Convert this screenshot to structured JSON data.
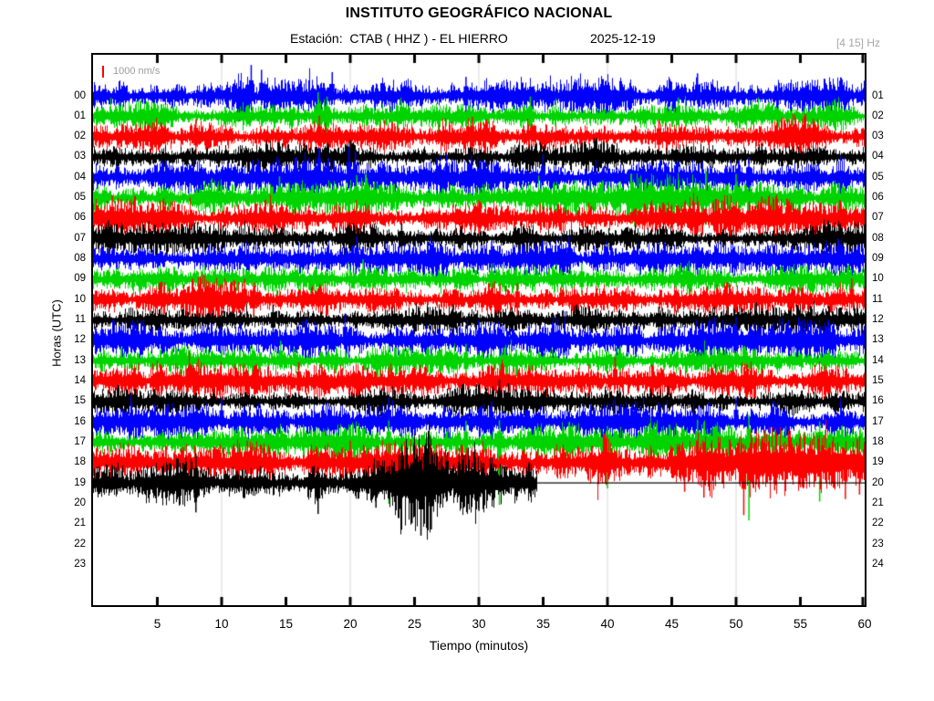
{
  "header": {
    "title": "INSTITUTO GEOGRÁFICO NACIONAL",
    "station_label": "Estación:  CTAB ( HHZ ) - EL HIERRO",
    "date": "2025-12-19",
    "filter_band": "[4 15] Hz"
  },
  "chart_data": {
    "type": "line",
    "subtype": "helicorder-seismogram",
    "title": "INSTITUTO GEOGRÁFICO NACIONAL",
    "subtitle": "Estación: CTAB ( HHZ ) - EL HIERRO  2025-12-19",
    "xlabel": "Tiempo (minutos)",
    "ylabel": "Horas (UTC)",
    "x_range": [
      0,
      60
    ],
    "x_ticks": [
      5,
      10,
      15,
      20,
      25,
      30,
      35,
      40,
      45,
      50,
      55,
      60
    ],
    "gridlines_minutes": [
      10,
      20,
      30,
      40,
      50
    ],
    "grid_color": "#d9d9d9",
    "grid_on": true,
    "legend": "none",
    "scale_marker": {
      "label": "1000 nm/s",
      "color": "#ff0000"
    },
    "trace_colors_cycle": [
      "#0000ff",
      "#00d400",
      "#ff0000",
      "#000000"
    ],
    "rows": [
      {
        "hour": "00",
        "end_hour": "01",
        "color": "#0000ff",
        "base_amp": 13,
        "coverage_min": 60,
        "envelope": [
          1.1,
          1.0,
          0.92,
          1.0,
          1.25,
          1.1,
          1.3,
          1.0,
          0.92,
          1.0,
          1.1,
          0.92,
          1.0,
          1.1,
          0.92,
          1.2,
          1.0,
          1.1,
          1.0,
          0.95
        ],
        "spikes": [
          [
            12.3,
            2.6,
            1
          ],
          [
            13.1,
            2.2,
            1
          ],
          [
            18.6,
            2.0,
            1
          ],
          [
            29,
            1.6,
            0
          ],
          [
            47,
            1.9,
            1
          ]
        ]
      },
      {
        "hour": "01",
        "end_hour": "02",
        "color": "#00d400",
        "base_amp": 12,
        "coverage_min": 60,
        "envelope": [
          0.95,
          1.0,
          1.1,
          0.92,
          1.0,
          1.3,
          1.15,
          0.92,
          1.0,
          0.95,
          1.1,
          1.15,
          0.92,
          1.0,
          1.2,
          1.0,
          0.95,
          1.0,
          1.1,
          0.95
        ],
        "spikes": [
          [
            17.5,
            2.2,
            1
          ],
          [
            18.2,
            1.8,
            0
          ],
          [
            34,
            1.8,
            0
          ],
          [
            45.5,
            1.7,
            1
          ]
        ]
      },
      {
        "hour": "02",
        "end_hour": "03",
        "color": "#ff0000",
        "base_amp": 12,
        "coverage_min": 60,
        "envelope": [
          1.0,
          0.95,
          1.15,
          1.0,
          0.92,
          1.25,
          1.0,
          0.95,
          1.1,
          1.3,
          1.0,
          0.92,
          1.0,
          1.1,
          0.95,
          1.0,
          1.15,
          0.95,
          1.25,
          1.0
        ],
        "spikes": [
          [
            8,
            1.6,
            0
          ],
          [
            17.6,
            1.9,
            1
          ],
          [
            29.5,
            1.8,
            0
          ],
          [
            44,
            1.5,
            0
          ],
          [
            56,
            1.6,
            1
          ]
        ]
      },
      {
        "hour": "03",
        "end_hour": "04",
        "color": "#000000",
        "base_amp": 10.5,
        "coverage_min": 60,
        "envelope": [
          0.95,
          1.0,
          0.88,
          0.95,
          1.0,
          0.95,
          1.05,
          0.95,
          0.88,
          1.0,
          0.95,
          1.0,
          1.15,
          1.25,
          1.1,
          0.95,
          1.0,
          0.95,
          0.88,
          0.95
        ],
        "spikes": [
          [
            20,
            1.8,
            1
          ],
          [
            40,
            1.4,
            0
          ],
          [
            52,
            1.4,
            0
          ]
        ]
      },
      {
        "hour": "04",
        "end_hour": "05",
        "color": "#0000ff",
        "base_amp": 14,
        "coverage_min": 60,
        "envelope": [
          1.0,
          1.1,
          0.95,
          1.15,
          1.0,
          0.95,
          1.35,
          1.1,
          0.95,
          1.15,
          1.0,
          1.25,
          1.0,
          0.95,
          1.1,
          1.0,
          0.95,
          1.15,
          1.0,
          1.1
        ],
        "spikes": [
          [
            19.9,
            2.4,
            1
          ],
          [
            20.4,
            2.0,
            1
          ],
          [
            27.5,
            1.8,
            1
          ],
          [
            35,
            1.8,
            1
          ],
          [
            51,
            1.6,
            0
          ]
        ]
      },
      {
        "hour": "05",
        "end_hour": "06",
        "color": "#00d400",
        "base_amp": 13,
        "coverage_min": 60,
        "envelope": [
          1.0,
          0.9,
          1.05,
          1.0,
          1.45,
          1.4,
          1.1,
          1.4,
          0.9,
          1.0,
          0.9,
          1.05,
          1.0,
          1.35,
          1.45,
          1.4,
          1.45,
          1.2,
          1.0,
          0.9
        ],
        "spikes": [
          [
            14.5,
            1.8,
            1
          ],
          [
            20.5,
            1.9,
            1
          ],
          [
            43,
            1.6,
            0
          ],
          [
            50,
            2.0,
            1
          ]
        ]
      },
      {
        "hour": "06",
        "end_hour": "07",
        "color": "#ff0000",
        "base_amp": 13,
        "coverage_min": 60,
        "envelope": [
          1.35,
          1.1,
          0.9,
          1.0,
          1.05,
          0.9,
          1.0,
          1.15,
          0.9,
          1.0,
          1.05,
          0.9,
          1.0,
          0.9,
          1.05,
          1.0,
          1.45,
          1.55,
          1.4,
          1.1
        ],
        "spikes": [
          [
            1.5,
            1.9,
            1
          ],
          [
            2.2,
            1.6,
            0
          ],
          [
            30,
            1.5,
            0
          ],
          [
            52,
            1.8,
            1
          ],
          [
            54,
            1.6,
            0
          ]
        ]
      },
      {
        "hour": "07",
        "end_hour": "08",
        "color": "#000000",
        "base_amp": 11,
        "coverage_min": 60,
        "envelope": [
          1.7,
          1.5,
          1.15,
          0.95,
          1.0,
          0.9,
          0.85,
          1.0,
          0.9,
          1.05,
          0.9,
          1.0,
          0.9,
          0.85,
          1.0,
          0.9,
          1.0,
          1.05,
          1.25,
          1.35
        ],
        "spikes": [
          [
            1.2,
            1.8,
            0
          ],
          [
            24,
            1.5,
            0
          ],
          [
            58,
            1.5,
            0
          ]
        ]
      },
      {
        "hour": "08",
        "end_hour": "09",
        "color": "#0000ff",
        "base_amp": 13,
        "coverage_min": 60,
        "envelope": [
          1.0,
          1.1,
          0.95,
          1.0,
          1.15,
          0.95,
          1.25,
          1.0,
          0.95,
          1.1,
          1.0,
          0.95,
          1.3,
          1.0,
          1.1,
          0.95,
          1.0,
          1.15,
          0.95,
          1.0
        ],
        "spikes": [
          [
            20.5,
            1.9,
            1
          ],
          [
            31,
            1.5,
            0
          ],
          [
            37,
            1.9,
            1
          ],
          [
            47,
            1.5,
            0
          ]
        ]
      },
      {
        "hour": "09",
        "end_hour": "10",
        "color": "#00d400",
        "base_amp": 11.5,
        "coverage_min": 60,
        "envelope": [
          0.95,
          1.0,
          0.95,
          1.05,
          0.95,
          1.0,
          1.15,
          1.0,
          0.95,
          1.0,
          0.95,
          1.05,
          1.25,
          1.15,
          0.95,
          1.0,
          0.95,
          1.0,
          1.05,
          0.95
        ],
        "spikes": [
          [
            21,
            1.9,
            1
          ],
          [
            31,
            1.5,
            0
          ],
          [
            38,
            1.5,
            0
          ]
        ]
      },
      {
        "hour": "10",
        "end_hour": "11",
        "color": "#ff0000",
        "base_amp": 12,
        "coverage_min": 60,
        "envelope": [
          1.0,
          0.9,
          1.05,
          1.55,
          1.25,
          0.9,
          1.0,
          0.9,
          1.05,
          0.9,
          1.0,
          1.1,
          0.9,
          1.0,
          0.9,
          1.05,
          0.9,
          1.0,
          0.9,
          1.25
        ],
        "spikes": [
          [
            11.8,
            1.9,
            1
          ],
          [
            12.5,
            1.6,
            0
          ],
          [
            33,
            1.5,
            0
          ],
          [
            59,
            1.9,
            1
          ]
        ]
      },
      {
        "hour": "11",
        "end_hour": "12",
        "color": "#000000",
        "base_amp": 10.5,
        "coverage_min": 60,
        "envelope": [
          0.95,
          1.0,
          0.95,
          0.88,
          1.2,
          1.0,
          0.95,
          1.0,
          0.95,
          1.3,
          1.15,
          0.95,
          1.0,
          0.95,
          0.88,
          1.0,
          0.95,
          1.0,
          1.05,
          0.95
        ],
        "spikes": [
          [
            14,
            1.6,
            0
          ],
          [
            28,
            1.6,
            0
          ],
          [
            44,
            1.4,
            0
          ]
        ]
      },
      {
        "hour": "12",
        "end_hour": "13",
        "color": "#0000ff",
        "base_amp": 14,
        "coverage_min": 60,
        "envelope": [
          1.1,
          1.0,
          0.95,
          1.15,
          1.0,
          1.05,
          1.3,
          0.95,
          1.0,
          1.1,
          0.95,
          1.0,
          1.15,
          0.95,
          1.05,
          1.0,
          1.25,
          0.95,
          1.0,
          1.05
        ],
        "spikes": [
          [
            19.6,
            2.1,
            1
          ],
          [
            30,
            1.6,
            0
          ],
          [
            50,
            1.8,
            1
          ],
          [
            55,
            1.5,
            0
          ]
        ]
      },
      {
        "hour": "13",
        "end_hour": "14",
        "color": "#00d400",
        "base_amp": 11.5,
        "coverage_min": 60,
        "envelope": [
          0.95,
          1.0,
          1.05,
          0.95,
          1.25,
          1.0,
          0.95,
          1.0,
          0.95,
          1.15,
          0.95,
          1.0,
          0.95,
          1.05,
          0.95,
          1.0,
          0.95,
          1.0,
          1.05,
          0.95
        ],
        "spikes": [
          [
            14.6,
            1.9,
            1
          ],
          [
            29,
            1.6,
            0
          ],
          [
            41,
            1.4,
            0
          ]
        ]
      },
      {
        "hour": "14",
        "end_hour": "15",
        "color": "#ff0000",
        "base_amp": 13,
        "coverage_min": 60,
        "envelope": [
          1.35,
          1.3,
          1.35,
          1.25,
          1.3,
          1.35,
          1.2,
          1.1,
          1.0,
          0.95,
          1.0,
          0.95,
          1.0,
          1.15,
          0.95,
          1.0,
          0.95,
          1.0,
          0.95,
          1.0
        ],
        "spikes": [
          [
            5,
            1.5,
            0
          ],
          [
            16,
            1.6,
            0
          ],
          [
            40.6,
            2.0,
            1
          ]
        ]
      },
      {
        "hour": "15",
        "end_hour": "16",
        "color": "#000000",
        "base_amp": 10.5,
        "coverage_min": 60,
        "envelope": [
          0.95,
          1.0,
          0.95,
          1.0,
          0.95,
          1.05,
          0.95,
          1.0,
          1.05,
          0.95,
          1.35,
          0.95,
          1.0,
          0.95,
          1.0,
          0.95,
          1.0,
          0.95,
          1.0,
          0.95
        ],
        "spikes": [
          [
            24,
            1.5,
            0
          ],
          [
            31.6,
            2.3,
            1
          ],
          [
            32.3,
            1.9,
            0
          ]
        ]
      },
      {
        "hour": "16",
        "end_hour": "17",
        "color": "#0000ff",
        "base_amp": 14,
        "coverage_min": 60,
        "envelope": [
          1.05,
          1.0,
          1.15,
          1.25,
          1.0,
          0.95,
          1.05,
          1.3,
          0.95,
          1.0,
          1.2,
          0.95,
          1.0,
          1.05,
          0.95,
          1.15,
          1.3,
          1.0,
          1.05,
          1.0
        ],
        "spikes": [
          [
            10,
            1.8,
            1
          ],
          [
            23,
            1.9,
            1
          ],
          [
            31,
            1.6,
            0
          ],
          [
            44,
            1.5,
            0
          ],
          [
            50,
            1.9,
            1
          ]
        ]
      },
      {
        "hour": "17",
        "end_hour": "18",
        "color": "#00d400",
        "base_amp": 13,
        "coverage_min": 60,
        "envelope": [
          1.0,
          1.05,
          0.95,
          1.0,
          1.15,
          0.95,
          1.0,
          1.05,
          0.95,
          1.2,
          1.0,
          0.95,
          1.05,
          1.0,
          0.95,
          1.5,
          1.7,
          1.35,
          1.05,
          1.1
        ],
        "spikes": [
          [
            23,
            5.2,
            -1
          ],
          [
            29,
            1.8,
            0
          ],
          [
            31.6,
            5.3,
            -1
          ],
          [
            40,
            3.9,
            -1
          ],
          [
            47,
            1.9,
            0
          ],
          [
            51,
            6.6,
            -1
          ],
          [
            56.5,
            5.0,
            -1
          ]
        ]
      },
      {
        "hour": "18",
        "end_hour": "19",
        "color": "#ff0000",
        "base_amp": 16,
        "coverage_min": 60,
        "envelope": [
          1.0,
          1.05,
          1.0,
          0.95,
          1.05,
          1.0,
          1.1,
          1.0,
          1.05,
          1.1,
          1.0,
          1.05,
          1.0,
          1.1,
          1.15,
          1.5,
          1.6,
          1.55,
          1.6,
          1.55
        ],
        "spikes": [
          [
            12,
            1.5,
            0
          ],
          [
            20,
            1.5,
            0
          ],
          [
            46,
            2.0,
            -1
          ],
          [
            47.5,
            2.4,
            -1
          ],
          [
            50.6,
            3.6,
            -1
          ],
          [
            53,
            1.9,
            -1
          ],
          [
            55,
            1.7,
            -1
          ],
          [
            58.5,
            2.5,
            -1
          ],
          [
            59.6,
            2.2,
            -1
          ]
        ]
      },
      {
        "hour": "19",
        "end_hour": "20",
        "color": "#000000",
        "base_amp": 17,
        "coverage_min": 34.5,
        "envelope": [
          1.05,
          1.1,
          1.0,
          1.15,
          1.1,
          1.05,
          1.1,
          1.25,
          2.2,
          2.5,
          1.7,
          1.25,
          1.0,
          1.0,
          1.0,
          1.0,
          1.0,
          1.0,
          1.0,
          1.0
        ],
        "spikes": [
          [
            8,
            1.9,
            0
          ],
          [
            17.5,
            2.0,
            -1
          ],
          [
            22,
            1.6,
            -1
          ],
          [
            24.8,
            2.6,
            -1
          ],
          [
            25.5,
            3.4,
            -1
          ],
          [
            26.3,
            3.0,
            -1
          ],
          [
            30,
            1.8,
            -1
          ]
        ]
      },
      {
        "hour": "20",
        "end_hour": "21",
        "color": "#0000ff",
        "base_amp": 0,
        "coverage_min": 0,
        "envelope": [],
        "spikes": []
      },
      {
        "hour": "21",
        "end_hour": "22",
        "color": "#00d400",
        "base_amp": 0,
        "coverage_min": 0,
        "envelope": [],
        "spikes": []
      },
      {
        "hour": "22",
        "end_hour": "23",
        "color": "#ff0000",
        "base_amp": 0,
        "coverage_min": 0,
        "envelope": [],
        "spikes": []
      },
      {
        "hour": "23",
        "end_hour": "24",
        "color": "#000000",
        "base_amp": 0,
        "coverage_min": 0,
        "envelope": [],
        "spikes": []
      }
    ]
  }
}
